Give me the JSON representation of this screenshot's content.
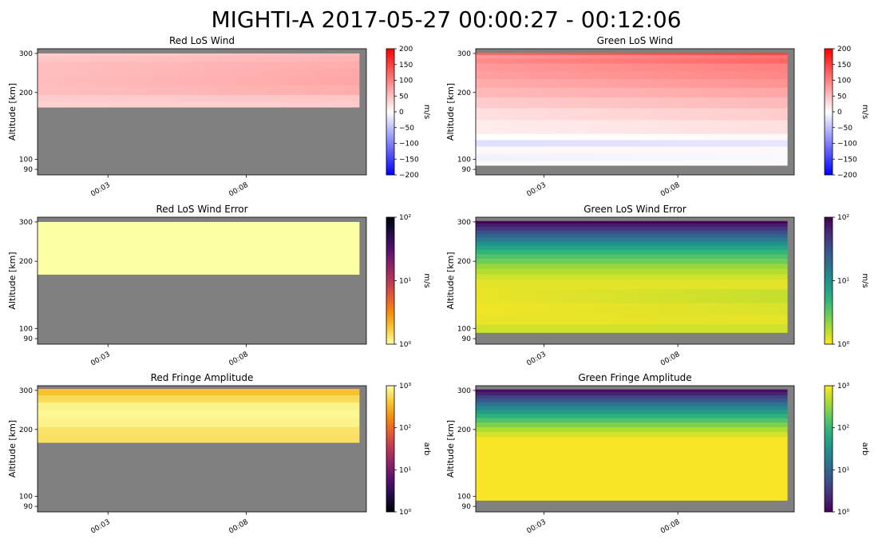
{
  "figure": {
    "title": "MIGHTI-A  2017-05-27 00:00:27 - 00:12:06"
  },
  "colors": {
    "no_data": "#808080",
    "axis": "#000000"
  },
  "chart_data": [
    {
      "id": "red-los-wind",
      "type": "heatmap",
      "title": "Red LoS Wind",
      "ylabel": "Altitude [km]",
      "y_ticks": [
        90,
        100,
        200,
        300
      ],
      "x_ticks": [
        "00:03",
        "00:08"
      ],
      "x_tick_values": [
        3,
        8
      ],
      "xlim": [
        0.45,
        12.35
      ],
      "ylim": [
        85,
        315
      ],
      "x_data_range": [
        0.45,
        12.1
      ],
      "colormap": "bwr",
      "colorbar": {
        "scale": "linear",
        "label": "m/s",
        "min": -200,
        "max": 200,
        "ticks": [
          "200",
          "150",
          "100",
          "50",
          "0",
          "−50",
          "−100",
          "−150",
          "−200"
        ],
        "tick_values": [
          200,
          150,
          100,
          50,
          0,
          -50,
          -100,
          -150,
          -200
        ]
      },
      "bands": [
        {
          "alt_bottom": 290,
          "alt_top": 300,
          "value_left": 40,
          "value_right": 55
        },
        {
          "alt_bottom": 275,
          "alt_top": 290,
          "value_left": 45,
          "value_right": 60
        },
        {
          "alt_bottom": 255,
          "alt_top": 275,
          "value_left": 50,
          "value_right": 65
        },
        {
          "alt_bottom": 235,
          "alt_top": 255,
          "value_left": 50,
          "value_right": 68
        },
        {
          "alt_bottom": 215,
          "alt_top": 235,
          "value_left": 52,
          "value_right": 70
        },
        {
          "alt_bottom": 195,
          "alt_top": 215,
          "value_left": 50,
          "value_right": 65
        },
        {
          "alt_bottom": 182,
          "alt_top": 195,
          "value_left": 40,
          "value_right": 45
        },
        {
          "alt_bottom": 172,
          "alt_top": 182,
          "value_left": 35,
          "value_right": 40
        }
      ]
    },
    {
      "id": "green-los-wind",
      "type": "heatmap",
      "title": "Green LoS Wind",
      "ylabel": "Altitude [km]",
      "y_ticks": [
        90,
        100,
        200,
        300
      ],
      "x_ticks": [
        "00:03",
        "00:08"
      ],
      "x_tick_values": [
        3,
        8
      ],
      "xlim": [
        0.45,
        12.35
      ],
      "ylim": [
        85,
        315
      ],
      "x_data_range": [
        0.45,
        12.1
      ],
      "colormap": "bwr",
      "colorbar": {
        "scale": "linear",
        "label": "m/s",
        "min": -200,
        "max": 200,
        "ticks": [
          "200",
          "150",
          "100",
          "50",
          "0",
          "−50",
          "−100",
          "−150",
          "−200"
        ],
        "tick_values": [
          200,
          150,
          100,
          50,
          0,
          -50,
          -100,
          -150,
          -200
        ]
      },
      "bands": [
        {
          "alt_bottom": 295,
          "alt_top": 302,
          "value_left": 120,
          "value_right": 150
        },
        {
          "alt_bottom": 285,
          "alt_top": 295,
          "value_left": 80,
          "value_right": 110
        },
        {
          "alt_bottom": 270,
          "alt_top": 285,
          "value_left": 90,
          "value_right": 120
        },
        {
          "alt_bottom": 250,
          "alt_top": 270,
          "value_left": 80,
          "value_right": 100
        },
        {
          "alt_bottom": 230,
          "alt_top": 250,
          "value_left": 75,
          "value_right": 95
        },
        {
          "alt_bottom": 210,
          "alt_top": 230,
          "value_left": 65,
          "value_right": 85
        },
        {
          "alt_bottom": 190,
          "alt_top": 210,
          "value_left": 55,
          "value_right": 70
        },
        {
          "alt_bottom": 170,
          "alt_top": 190,
          "value_left": 40,
          "value_right": 55
        },
        {
          "alt_bottom": 150,
          "alt_top": 170,
          "value_left": 25,
          "value_right": 40
        },
        {
          "alt_bottom": 130,
          "alt_top": 150,
          "value_left": 15,
          "value_right": 25
        },
        {
          "alt_bottom": 122,
          "alt_top": 130,
          "value_left": 0,
          "value_right": 5
        },
        {
          "alt_bottom": 114,
          "alt_top": 122,
          "value_left": -25,
          "value_right": -20
        },
        {
          "alt_bottom": 106,
          "alt_top": 114,
          "value_left": 5,
          "value_right": 5
        },
        {
          "alt_bottom": 98,
          "alt_top": 106,
          "value_left": -10,
          "value_right": -5
        },
        {
          "alt_bottom": 94,
          "alt_top": 98,
          "value_left": 5,
          "value_right": 5
        }
      ]
    },
    {
      "id": "red-los-wind-error",
      "type": "heatmap",
      "title": "Red LoS Wind Error",
      "ylabel": "Altitude [km]",
      "y_ticks": [
        90,
        100,
        200,
        300
      ],
      "x_ticks": [
        "00:03",
        "00:08"
      ],
      "x_tick_values": [
        3,
        8
      ],
      "xlim": [
        0.45,
        12.35
      ],
      "ylim": [
        85,
        315
      ],
      "x_data_range": [
        0.45,
        12.1
      ],
      "colormap": "inferno_r",
      "colorbar": {
        "scale": "log",
        "label": "m/s",
        "min": 1,
        "max": 100,
        "ticks": [
          "10²",
          "10¹",
          "10⁰"
        ],
        "tick_values": [
          100,
          10,
          1
        ]
      },
      "bands": [
        {
          "alt_bottom": 175,
          "alt_top": 300,
          "value_left": 1,
          "value_right": 1
        }
      ]
    },
    {
      "id": "green-los-wind-error",
      "type": "heatmap",
      "title": "Green LoS Wind Error",
      "ylabel": "Altitude [km]",
      "y_ticks": [
        90,
        100,
        200,
        300
      ],
      "x_ticks": [
        "00:03",
        "00:08"
      ],
      "x_tick_values": [
        3,
        8
      ],
      "xlim": [
        0.45,
        12.35
      ],
      "ylim": [
        85,
        315
      ],
      "x_data_range": [
        0.45,
        12.1
      ],
      "colormap": "viridis_r",
      "colorbar": {
        "scale": "log",
        "label": "m/s",
        "min": 1,
        "max": 100,
        "ticks": [
          "10²",
          "10¹",
          "10⁰"
        ],
        "tick_values": [
          100,
          10,
          1
        ]
      },
      "bands": [
        {
          "alt_bottom": 295,
          "alt_top": 303,
          "value_left": 95,
          "value_right": 95
        },
        {
          "alt_bottom": 285,
          "alt_top": 295,
          "value_left": 70,
          "value_right": 70
        },
        {
          "alt_bottom": 275,
          "alt_top": 285,
          "value_left": 50,
          "value_right": 50
        },
        {
          "alt_bottom": 265,
          "alt_top": 275,
          "value_left": 32,
          "value_right": 32
        },
        {
          "alt_bottom": 255,
          "alt_top": 265,
          "value_left": 22,
          "value_right": 22
        },
        {
          "alt_bottom": 245,
          "alt_top": 255,
          "value_left": 15,
          "value_right": 15
        },
        {
          "alt_bottom": 235,
          "alt_top": 245,
          "value_left": 10,
          "value_right": 10
        },
        {
          "alt_bottom": 225,
          "alt_top": 235,
          "value_left": 7,
          "value_right": 7
        },
        {
          "alt_bottom": 215,
          "alt_top": 225,
          "value_left": 5,
          "value_right": 5
        },
        {
          "alt_bottom": 205,
          "alt_top": 215,
          "value_left": 3.7,
          "value_right": 3.7
        },
        {
          "alt_bottom": 195,
          "alt_top": 205,
          "value_left": 2.8,
          "value_right": 2.8
        },
        {
          "alt_bottom": 185,
          "alt_top": 195,
          "value_left": 2.1,
          "value_right": 2.1
        },
        {
          "alt_bottom": 175,
          "alt_top": 185,
          "value_left": 1.7,
          "value_right": 1.7
        },
        {
          "alt_bottom": 165,
          "alt_top": 175,
          "value_left": 1.4,
          "value_right": 1.4
        },
        {
          "alt_bottom": 150,
          "alt_top": 165,
          "value_left": 1.2,
          "value_right": 1.2
        },
        {
          "alt_bottom": 130,
          "alt_top": 150,
          "value_left": 1.15,
          "value_right": 1.5
        },
        {
          "alt_bottom": 115,
          "alt_top": 130,
          "value_left": 1.1,
          "value_right": 1.3
        },
        {
          "alt_bottom": 104,
          "alt_top": 115,
          "value_left": 1.15,
          "value_right": 1.2
        },
        {
          "alt_bottom": 96,
          "alt_top": 104,
          "value_left": 1.4,
          "value_right": 1.4
        }
      ]
    },
    {
      "id": "red-fringe-amplitude",
      "type": "heatmap",
      "title": "Red Fringe Amplitude",
      "ylabel": "Altitude [km]",
      "y_ticks": [
        90,
        100,
        200,
        300
      ],
      "x_ticks": [
        "00:03",
        "00:08"
      ],
      "x_tick_values": [
        3,
        8
      ],
      "xlim": [
        0.45,
        12.35
      ],
      "ylim": [
        85,
        315
      ],
      "x_data_range": [
        0.45,
        12.1
      ],
      "colormap": "inferno",
      "colorbar": {
        "scale": "log",
        "label": "arb",
        "min": 1,
        "max": 1000,
        "ticks": [
          "10³",
          "10²",
          "10¹",
          "10⁰"
        ],
        "tick_values": [
          1000,
          100,
          10,
          1
        ]
      },
      "bands": [
        {
          "alt_bottom": 285,
          "alt_top": 305,
          "value_left": 380,
          "value_right": 380
        },
        {
          "alt_bottom": 265,
          "alt_top": 285,
          "value_left": 560,
          "value_right": 560
        },
        {
          "alt_bottom": 245,
          "alt_top": 265,
          "value_left": 820,
          "value_right": 820
        },
        {
          "alt_bottom": 225,
          "alt_top": 245,
          "value_left": 880,
          "value_right": 880
        },
        {
          "alt_bottom": 205,
          "alt_top": 225,
          "value_left": 820,
          "value_right": 820
        },
        {
          "alt_bottom": 190,
          "alt_top": 205,
          "value_left": 640,
          "value_right": 640
        },
        {
          "alt_bottom": 175,
          "alt_top": 190,
          "value_left": 600,
          "value_right": 600
        }
      ]
    },
    {
      "id": "green-fringe-amplitude",
      "type": "heatmap",
      "title": "Green Fringe Amplitude",
      "ylabel": "Altitude [km]",
      "y_ticks": [
        90,
        100,
        200,
        300
      ],
      "x_ticks": [
        "00:03",
        "00:08"
      ],
      "x_tick_values": [
        3,
        8
      ],
      "xlim": [
        0.45,
        12.35
      ],
      "ylim": [
        85,
        315
      ],
      "x_data_range": [
        0.45,
        12.1
      ],
      "colormap": "viridis",
      "colorbar": {
        "scale": "log",
        "label": "arb",
        "min": 1,
        "max": 1000,
        "ticks": [
          "10³",
          "10²",
          "10¹",
          "10⁰"
        ],
        "tick_values": [
          1000,
          100,
          10,
          1
        ]
      },
      "bands": [
        {
          "alt_bottom": 295,
          "alt_top": 303,
          "value_left": 1.3,
          "value_right": 1.3
        },
        {
          "alt_bottom": 285,
          "alt_top": 295,
          "value_left": 2,
          "value_right": 2
        },
        {
          "alt_bottom": 275,
          "alt_top": 285,
          "value_left": 4,
          "value_right": 4
        },
        {
          "alt_bottom": 265,
          "alt_top": 275,
          "value_left": 7,
          "value_right": 7
        },
        {
          "alt_bottom": 255,
          "alt_top": 265,
          "value_left": 14,
          "value_right": 14
        },
        {
          "alt_bottom": 245,
          "alt_top": 255,
          "value_left": 25,
          "value_right": 25
        },
        {
          "alt_bottom": 235,
          "alt_top": 245,
          "value_left": 45,
          "value_right": 45
        },
        {
          "alt_bottom": 225,
          "alt_top": 235,
          "value_left": 80,
          "value_right": 80
        },
        {
          "alt_bottom": 215,
          "alt_top": 225,
          "value_left": 140,
          "value_right": 140
        },
        {
          "alt_bottom": 205,
          "alt_top": 215,
          "value_left": 250,
          "value_right": 250
        },
        {
          "alt_bottom": 195,
          "alt_top": 205,
          "value_left": 420,
          "value_right": 420
        },
        {
          "alt_bottom": 185,
          "alt_top": 195,
          "value_left": 650,
          "value_right": 650
        },
        {
          "alt_bottom": 96,
          "alt_top": 185,
          "value_left": 950,
          "value_right": 950
        }
      ]
    }
  ]
}
